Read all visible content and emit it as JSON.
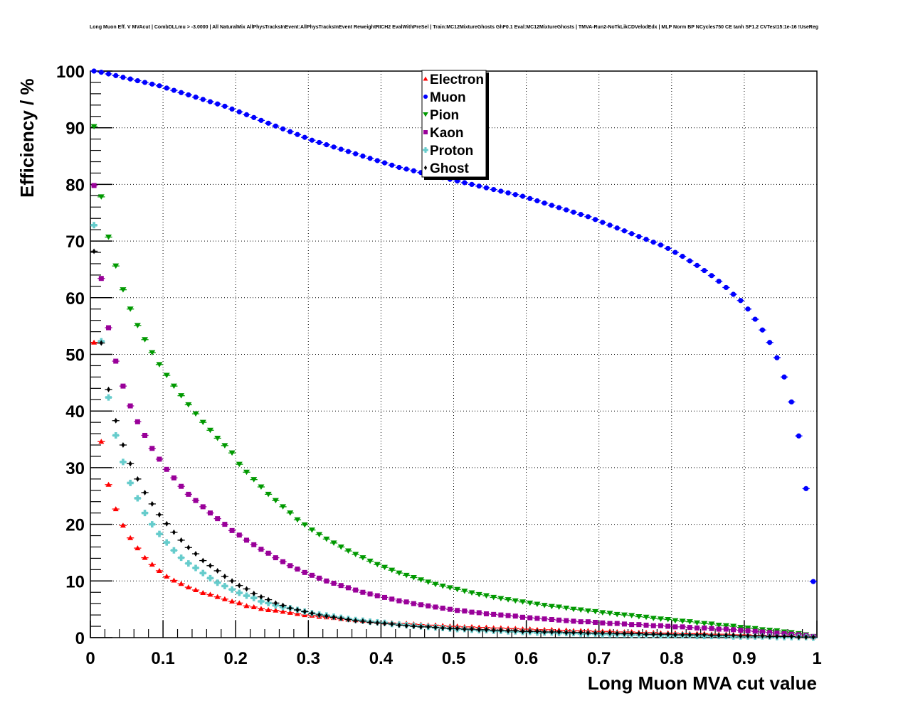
{
  "chart_data": {
    "type": "scatter",
    "title": "Long Muon Eff. V MVAcut | CombDLLmu > -3.0000 | All NaturalMix AllPhysTracksInEvent:AllPhysTracksInEvent ReweightRICH2 EvalWithPreSel | Train:MC12MixtureGhosts GhF0.1 Eval:MC12MixtureGhosts | TMVA-Run2-NoTkLikCDVelodEdx | MLP Norm BP NCycles750 CE tanh SF1.2 CVTest15:1e-16 !UseReg",
    "xlabel": "Long Muon MVA cut value",
    "ylabel": "Efficiency / %",
    "xlim": [
      0,
      1
    ],
    "ylim": [
      0,
      100
    ],
    "grid": true,
    "legend_position": "top-center",
    "x_ticks": [
      "0",
      "0.1",
      "0.2",
      "0.3",
      "0.4",
      "0.5",
      "0.6",
      "0.7",
      "0.8",
      "0.9",
      "1"
    ],
    "y_ticks": [
      "0",
      "10",
      "20",
      "30",
      "40",
      "50",
      "60",
      "70",
      "80",
      "90",
      "100"
    ],
    "x_start": 0.005,
    "x_step": 0.01,
    "x_halfwidth": 0.005,
    "series": [
      {
        "name": "Electron",
        "color": "#ff0000",
        "marker": "triangle-up",
        "values": [
          52.1,
          34.6,
          27.0,
          22.7,
          19.8,
          17.6,
          15.8,
          14.1,
          12.9,
          11.8,
          10.8,
          10.1,
          9.5,
          8.9,
          8.4,
          7.9,
          7.6,
          7.2,
          6.8,
          6.4,
          6.1,
          5.6,
          5.4,
          5.1,
          4.9,
          4.8,
          4.6,
          4.4,
          4.2,
          4.0,
          3.9,
          3.7,
          3.6,
          3.5,
          3.3,
          3.2,
          3.1,
          3.0,
          2.9,
          2.8,
          2.7,
          2.6,
          2.5,
          2.5,
          2.4,
          2.3,
          2.2,
          2.2,
          2.1,
          2.0,
          2.0,
          1.9,
          1.9,
          1.8,
          1.8,
          1.7,
          1.7,
          1.6,
          1.6,
          1.5,
          1.5,
          1.4,
          1.4,
          1.4,
          1.3,
          1.3,
          1.2,
          1.2,
          1.2,
          1.1,
          1.1,
          1.1,
          1.0,
          1.0,
          1.0,
          0.9,
          0.9,
          0.9,
          0.8,
          0.8,
          0.8,
          0.7,
          0.7,
          0.7,
          0.7,
          0.6,
          0.6,
          0.6,
          0.5,
          0.5,
          0.5,
          0.4,
          0.4,
          0.4,
          0.3,
          0.3,
          0.3,
          0.2,
          0.2,
          0.1
        ]
      },
      {
        "name": "Muon",
        "color": "#0000ff",
        "marker": "circle",
        "values": [
          100.0,
          99.8,
          99.5,
          99.2,
          98.9,
          98.6,
          98.3,
          98.0,
          97.7,
          97.4,
          97.0,
          96.6,
          96.2,
          95.8,
          95.4,
          95.0,
          94.6,
          94.2,
          93.8,
          93.3,
          92.8,
          92.3,
          91.8,
          91.3,
          90.8,
          90.3,
          89.8,
          89.3,
          88.8,
          88.3,
          87.8,
          87.4,
          87.0,
          86.6,
          86.2,
          85.8,
          85.4,
          85.0,
          84.6,
          84.2,
          83.8,
          83.4,
          83.0,
          82.7,
          82.4,
          82.1,
          81.8,
          81.5,
          81.2,
          80.9,
          80.6,
          80.3,
          80.0,
          79.7,
          79.4,
          79.1,
          78.8,
          78.5,
          78.2,
          77.9,
          77.5,
          77.1,
          76.7,
          76.3,
          75.9,
          75.5,
          75.1,
          74.7,
          74.3,
          73.8,
          73.3,
          72.8,
          72.3,
          71.8,
          71.3,
          70.8,
          70.3,
          69.8,
          69.3,
          68.7,
          68.0,
          67.3,
          66.5,
          65.7,
          64.8,
          63.9,
          62.9,
          61.8,
          60.6,
          59.5,
          58.0,
          56.2,
          54.3,
          52.1,
          49.4,
          46.0,
          41.6,
          35.6,
          26.3,
          9.9
        ]
      },
      {
        "name": "Pion",
        "color": "#009900",
        "marker": "triangle-down",
        "values": [
          90.2,
          77.8,
          70.7,
          65.6,
          61.4,
          58.0,
          55.1,
          52.6,
          50.3,
          48.2,
          46.3,
          44.4,
          42.7,
          41.1,
          39.5,
          38.0,
          36.6,
          35.2,
          33.9,
          32.6,
          30.6,
          29.2,
          27.9,
          26.6,
          25.3,
          24.2,
          23.1,
          22.0,
          20.8,
          19.9,
          19.0,
          18.2,
          17.4,
          16.7,
          16.0,
          15.3,
          14.7,
          14.1,
          13.5,
          12.9,
          12.4,
          11.9,
          11.4,
          11.0,
          10.6,
          10.2,
          9.8,
          9.4,
          9.1,
          8.8,
          8.5,
          8.2,
          7.9,
          7.6,
          7.4,
          7.1,
          6.9,
          6.7,
          6.5,
          6.3,
          6.1,
          5.9,
          5.7,
          5.5,
          5.4,
          5.2,
          5.0,
          4.9,
          4.7,
          4.6,
          4.4,
          4.3,
          4.1,
          4.0,
          3.9,
          3.7,
          3.6,
          3.4,
          3.3,
          3.2,
          3.0,
          2.9,
          2.8,
          2.6,
          2.5,
          2.4,
          2.2,
          2.1,
          2.0,
          1.8,
          1.7,
          1.6,
          1.4,
          1.3,
          1.2,
          1.0,
          0.9,
          0.7,
          0.5,
          0.2
        ]
      },
      {
        "name": "Kaon",
        "color": "#990099",
        "marker": "square",
        "values": [
          79.8,
          63.4,
          54.7,
          48.8,
          44.4,
          40.9,
          38.1,
          35.7,
          33.4,
          31.5,
          29.7,
          28.2,
          26.7,
          25.3,
          24.2,
          23.1,
          22.0,
          21.0,
          20.0,
          18.9,
          18.1,
          17.2,
          16.4,
          15.6,
          14.9,
          14.1,
          13.4,
          12.7,
          12.1,
          11.5,
          11.0,
          10.5,
          10.0,
          9.6,
          9.2,
          8.8,
          8.4,
          8.0,
          7.7,
          7.4,
          7.1,
          6.8,
          6.5,
          6.3,
          6.0,
          5.8,
          5.6,
          5.4,
          5.2,
          5.0,
          4.8,
          4.7,
          4.5,
          4.4,
          4.2,
          4.1,
          4.0,
          3.9,
          3.8,
          3.6,
          3.5,
          3.4,
          3.3,
          3.2,
          3.1,
          3.0,
          2.9,
          2.8,
          2.8,
          2.7,
          2.6,
          2.5,
          2.5,
          2.4,
          2.3,
          2.3,
          2.2,
          2.1,
          2.1,
          2.0,
          1.9,
          1.9,
          1.8,
          1.7,
          1.7,
          1.6,
          1.5,
          1.5,
          1.4,
          1.3,
          1.2,
          1.1,
          1.0,
          0.9,
          0.8,
          0.7,
          0.6,
          0.5,
          0.4,
          0.2
        ]
      },
      {
        "name": "Proton",
        "color": "#66cccc",
        "marker": "cross",
        "values": [
          72.8,
          52.3,
          42.4,
          35.7,
          31.0,
          27.3,
          24.6,
          22.0,
          20.0,
          18.3,
          16.8,
          15.4,
          14.1,
          13.1,
          12.3,
          11.4,
          10.5,
          9.7,
          9.1,
          8.5,
          7.9,
          7.4,
          7.0,
          6.4,
          6.1,
          5.7,
          5.4,
          5.2,
          4.9,
          4.6,
          4.3,
          4.1,
          3.9,
          3.7,
          3.5,
          3.3,
          3.1,
          3.0,
          2.8,
          2.7,
          2.6,
          2.4,
          2.3,
          2.2,
          2.1,
          2.0,
          1.9,
          1.8,
          1.7,
          1.6,
          1.5,
          1.5,
          1.4,
          1.3,
          1.3,
          1.2,
          1.2,
          1.1,
          1.1,
          1.0,
          1.0,
          0.9,
          0.9,
          0.9,
          0.8,
          0.8,
          0.8,
          0.7,
          0.7,
          0.7,
          0.6,
          0.6,
          0.6,
          0.6,
          0.5,
          0.5,
          0.5,
          0.5,
          0.4,
          0.4,
          0.4,
          0.4,
          0.4,
          0.3,
          0.3,
          0.3,
          0.3,
          0.3,
          0.2,
          0.2,
          0.2,
          0.2,
          0.2,
          0.2,
          0.1,
          0.1,
          0.1,
          0.1,
          0.1,
          0.0
        ]
      },
      {
        "name": "Ghost",
        "color": "#000000",
        "marker": "diamond",
        "values": [
          68.2,
          52.0,
          43.8,
          38.3,
          34.0,
          30.7,
          28.0,
          25.6,
          23.6,
          21.7,
          20.1,
          18.6,
          17.2,
          15.9,
          14.8,
          13.6,
          12.7,
          11.8,
          10.8,
          10.0,
          9.2,
          8.6,
          7.8,
          7.2,
          6.7,
          6.1,
          5.7,
          5.2,
          4.9,
          4.6,
          4.3,
          4.0,
          3.8,
          3.6,
          3.4,
          3.2,
          3.0,
          2.9,
          2.7,
          2.6,
          2.5,
          2.4,
          2.2,
          2.1,
          2.0,
          1.9,
          1.9,
          1.8,
          1.7,
          1.6,
          1.6,
          1.5,
          1.5,
          1.4,
          1.4,
          1.3,
          1.3,
          1.2,
          1.2,
          1.1,
          1.1,
          1.1,
          1.0,
          1.0,
          1.0,
          0.9,
          0.9,
          0.9,
          0.8,
          0.8,
          0.8,
          0.8,
          0.7,
          0.7,
          0.7,
          0.7,
          0.6,
          0.6,
          0.6,
          0.6,
          0.5,
          0.5,
          0.5,
          0.5,
          0.5,
          0.4,
          0.4,
          0.4,
          0.4,
          0.3,
          0.3,
          0.3,
          0.3,
          0.2,
          0.2,
          0.2,
          0.2,
          0.1,
          0.1,
          0.1
        ]
      }
    ]
  }
}
